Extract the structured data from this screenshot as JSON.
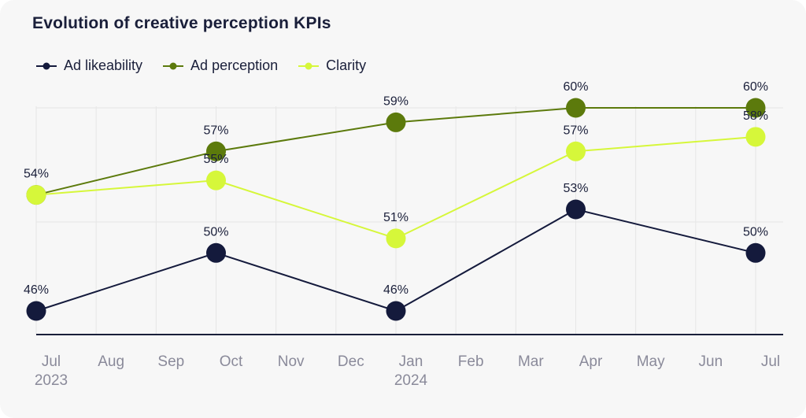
{
  "chart_data": {
    "type": "line",
    "title": "Evolution of creative perception KPIs",
    "x": [
      "Jul 2023",
      "Oct 2023",
      "Jan 2024",
      "Apr 2024",
      "Jul 2024"
    ],
    "x_ticks": [
      {
        "label": "Jul",
        "sub": "2023"
      },
      {
        "label": "Aug",
        "sub": ""
      },
      {
        "label": "Sep",
        "sub": ""
      },
      {
        "label": "Oct",
        "sub": ""
      },
      {
        "label": "Nov",
        "sub": ""
      },
      {
        "label": "Dec",
        "sub": ""
      },
      {
        "label": "Jan",
        "sub": "2024"
      },
      {
        "label": "Feb",
        "sub": ""
      },
      {
        "label": "Mar",
        "sub": ""
      },
      {
        "label": "Apr",
        "sub": ""
      },
      {
        "label": "May",
        "sub": ""
      },
      {
        "label": "Jun",
        "sub": ""
      },
      {
        "label": "Jul",
        "sub": ""
      }
    ],
    "series": [
      {
        "name": "Ad likeability",
        "color": "#141a3c",
        "values": [
          46,
          50,
          46,
          53,
          50
        ],
        "labels": [
          "46%",
          "50%",
          "46%",
          "53%",
          "50%"
        ]
      },
      {
        "name": "Ad perception",
        "color": "#5c7a0c",
        "values": [
          54,
          57,
          59,
          60,
          60
        ],
        "labels": [
          "",
          "57%",
          "59%",
          "60%",
          "60%"
        ]
      },
      {
        "name": "Clarity",
        "color": "#d6f73a",
        "values": [
          54,
          55,
          51,
          57,
          58
        ],
        "labels": [
          "54%",
          "55%",
          "51%",
          "57%",
          "58%"
        ]
      }
    ],
    "ylim": [
      43,
      61.5
    ],
    "grid": true,
    "legend_position": "top-left"
  }
}
